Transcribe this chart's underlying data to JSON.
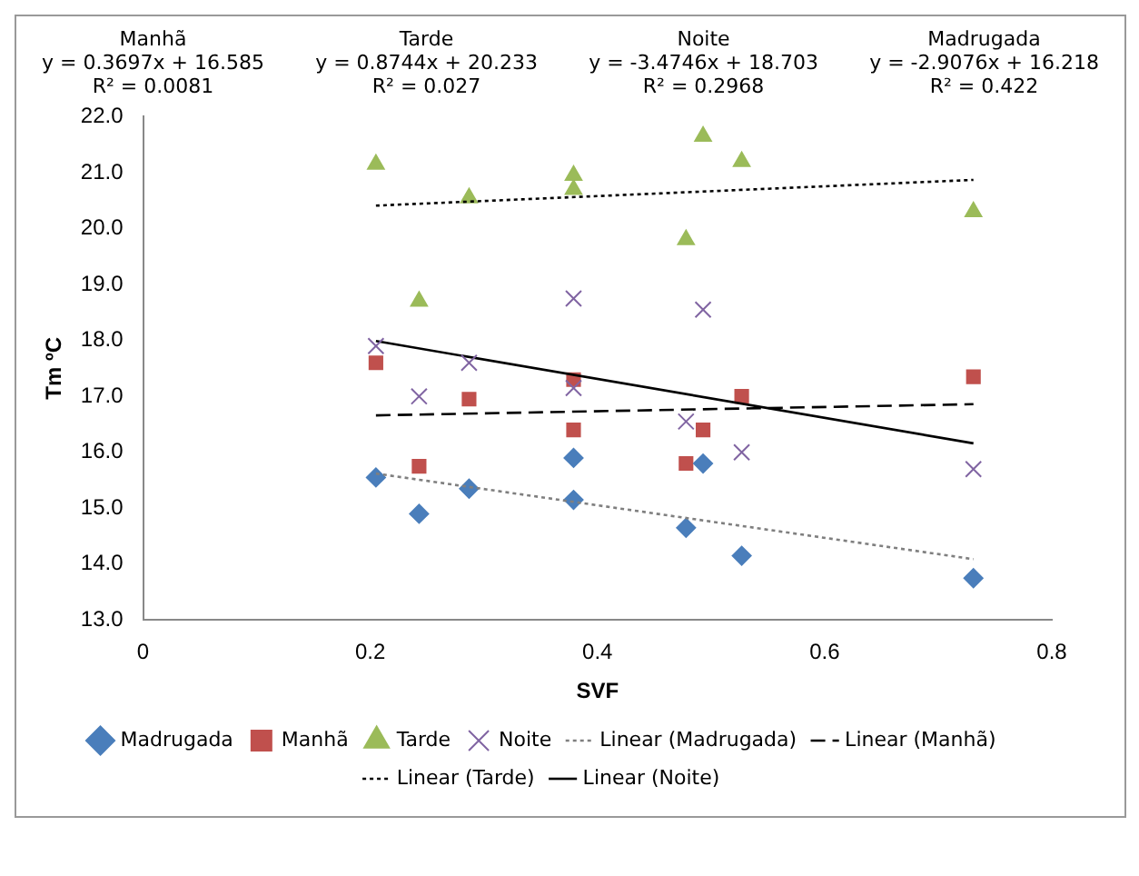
{
  "chart_data": {
    "type": "scatter",
    "xlabel": "SVF",
    "ylabel": "Tm ºC",
    "annotations": [
      "Manhã\ny = 0.3697x + 16.585\nR² = 0.0081",
      "Tarde\ny = 0.8744x + 20.233\nR² = 0.027",
      "Noite\ny = -3.4746x + 18.703\nR² = 0.2968",
      "Madrugada\ny = -2.9076x + 16.218\nR² = 0.422"
    ],
    "xlim": [
      0,
      0.8
    ],
    "xticks": [
      0,
      0.2,
      0.4,
      0.6,
      0.8
    ],
    "ylim": [
      13,
      22
    ],
    "yticks": [
      {
        "value": 13,
        "label": "13.0"
      },
      {
        "value": 14,
        "label": "14.0"
      },
      {
        "value": 15,
        "label": "15.0"
      },
      {
        "value": 16,
        "label": "16.0"
      },
      {
        "value": 17,
        "label": "17.0"
      },
      {
        "value": 18,
        "label": "18.0"
      },
      {
        "value": 19,
        "label": "19.0"
      },
      {
        "value": 20,
        "label": "20.0"
      },
      {
        "value": 21,
        "label": "21.0"
      },
      {
        "value": 22,
        "label": "22.0"
      }
    ],
    "grid": false,
    "legend": "bottom",
    "series": [
      {
        "name": "Madrugada",
        "color": "#4a7ebb",
        "marker": "diamond",
        "x": [
          0.205,
          0.243,
          0.287,
          0.379,
          0.379,
          0.478,
          0.493,
          0.527,
          0.731
        ],
        "values": [
          15.55,
          14.9,
          15.35,
          15.15,
          15.9,
          14.65,
          15.8,
          14.15,
          13.75
        ]
      },
      {
        "name": "Manhã",
        "color": "#c0504d",
        "marker": "square",
        "x": [
          0.205,
          0.243,
          0.287,
          0.379,
          0.379,
          0.478,
          0.493,
          0.527,
          0.731
        ],
        "values": [
          17.6,
          15.75,
          16.95,
          17.3,
          16.4,
          15.8,
          16.4,
          17.0,
          17.35
        ]
      },
      {
        "name": "Tarde",
        "color": "#9bbb59",
        "marker": "triangle",
        "x": [
          0.205,
          0.243,
          0.287,
          0.379,
          0.379,
          0.478,
          0.493,
          0.527,
          0.731
        ],
        "values": [
          21.15,
          18.7,
          20.55,
          20.95,
          20.7,
          19.8,
          21.65,
          21.2,
          20.3
        ]
      },
      {
        "name": "Noite",
        "color": "#8064a2",
        "marker": "cross",
        "x": [
          0.205,
          0.243,
          0.287,
          0.379,
          0.379,
          0.478,
          0.493,
          0.527,
          0.731
        ],
        "values": [
          17.9,
          17.0,
          17.6,
          18.75,
          17.15,
          16.55,
          18.55,
          16.0,
          15.7
        ]
      },
      {
        "name": "Linear (Madrugada)",
        "type": "line",
        "color": "#7f7f7f",
        "line_style": "dotted",
        "x": [
          0.205,
          0.731
        ],
        "values": [
          15.62,
          14.09
        ]
      },
      {
        "name": "Linear (Manhã)",
        "type": "line",
        "color": "#000000",
        "line_style": "dashed",
        "x": [
          0.205,
          0.731
        ],
        "values": [
          16.66,
          16.86
        ]
      },
      {
        "name": "Linear (Tarde)",
        "type": "line",
        "color": "#000000",
        "line_style": "dotted",
        "x": [
          0.205,
          0.731
        ],
        "values": [
          20.41,
          20.87
        ]
      },
      {
        "name": "Linear (Noite)",
        "type": "line",
        "color": "#000000",
        "line_style": "solid",
        "x": [
          0.205,
          0.731
        ],
        "values": [
          17.99,
          16.16
        ]
      }
    ]
  }
}
